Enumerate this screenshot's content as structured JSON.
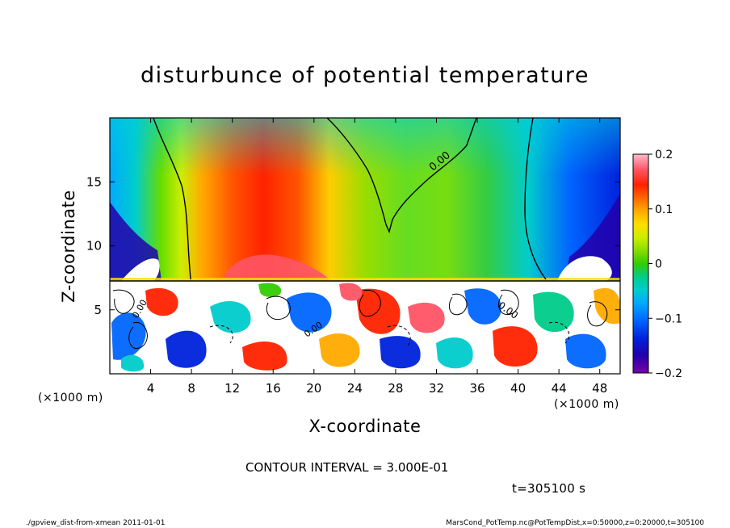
{
  "chart_data": {
    "type": "heatmap",
    "title": "disturbunce of potential temperature",
    "xlabel": "X-coordinate",
    "ylabel": "Z-coordinate",
    "x_unit": "(×1000 m)",
    "z_unit": "(×1000 m)",
    "x_ticks": [
      4,
      8,
      12,
      16,
      20,
      24,
      28,
      32,
      36,
      40,
      44,
      48
    ],
    "z_ticks": [
      5,
      10,
      15
    ],
    "xlim": [
      0,
      50
    ],
    "zlim": [
      0,
      20
    ],
    "colorbar": {
      "min": -0.2,
      "max": 0.2,
      "tick_values": [
        0.2,
        0.1,
        0,
        -0.1,
        -0.2
      ],
      "tick_labels": [
        "0.2",
        "0.1",
        "0",
        "−0.1",
        "−0.2"
      ],
      "colors": [
        "#ffbbcc",
        "#ff5566",
        "#ff2200",
        "#ff6600",
        "#ffaa00",
        "#ffdd00",
        "#ccee00",
        "#88dd00",
        "#33cc00",
        "#00cc88",
        "#00cccc",
        "#00aaff",
        "#0066ff",
        "#0022dd",
        "#2200aa",
        "#7700aa"
      ]
    },
    "contour_labels": [
      "0.00",
      "0.00",
      "0.00",
      "0.00"
    ],
    "contour_interval_text": "CONTOUR INTERVAL = 3.000E-01",
    "time_text": "t=305100 s"
  },
  "footer": {
    "left": "./gpview_dist-from-xmean  2011-01-01",
    "right": "MarsCond_PotTemp.nc@PotTempDist,x=0:50000,z=0:20000,t=305100"
  }
}
